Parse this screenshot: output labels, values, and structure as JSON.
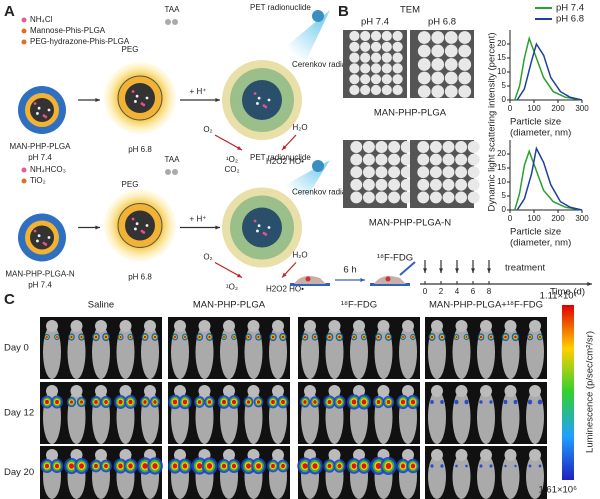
{
  "panel_a": {
    "label": "A",
    "top": {
      "legend": [
        "NH₄Cl",
        "Mannose-Phis-PLGA",
        "PEG-hydrazone-Phis-PLGA"
      ],
      "taa": "TAA",
      "peg": "PEG",
      "h_plus": "+ H⁺",
      "pet": "PET radionuclide",
      "cerenkov": "Cerenkov radiation",
      "o2": "O₂",
      "h2o": "H₂O",
      "singlet": "¹O₂",
      "ros": "H2O2 HO•",
      "name": "MAN-PHP-PLGA",
      "ph1": "pH 7.4",
      "ph2": "pH 6.8"
    },
    "bottom": {
      "legend": [
        "NH₄HCO₃",
        "TiO₂"
      ],
      "taa": "TAA",
      "peg": "PEG",
      "h_plus": "+ H⁺",
      "co2": "CO₂",
      "pet": "PET radionuclide",
      "cerenkov": "Cerenkov radiation",
      "o2": "O₂",
      "h2o": "H₂O",
      "singlet": "¹O₂",
      "ros": "H2O2 HO•",
      "name": "MAN-PHP-PLGA-N",
      "ph1": "pH 7.4",
      "ph2": "pH 6.8"
    }
  },
  "panel_b": {
    "label": "B",
    "tem": "TEM",
    "ph1": "pH 7.4",
    "ph2": "pH 6.8",
    "captions": [
      "MAN-PHP-PLGA",
      "MAN-PHP-PLGA-N"
    ],
    "ylabel": "Dynamic light scattering intensity (percent)",
    "charts": [
      {
        "type": "line",
        "xlabel": [
          "Particle size",
          "(diameter, nm)"
        ],
        "xlim": [
          0,
          300
        ],
        "ylim": [
          0,
          25
        ],
        "xticks": [
          0,
          100,
          200,
          300
        ],
        "yticks": [
          0,
          5,
          10,
          15,
          20
        ],
        "legend": "top-right",
        "series": [
          {
            "name": "pH 7.4",
            "color": "#2ca02c",
            "x": [
              20,
              40,
              60,
              80,
              110,
              140,
              180,
              230,
              300
            ],
            "values": [
              0,
              5,
              15,
              22,
              15,
              8,
              3,
              1,
              0
            ]
          },
          {
            "name": "pH 6.8",
            "color": "#1f3f9f",
            "x": [
              30,
              60,
              90,
              110,
              140,
              170,
              210,
              250,
              300
            ],
            "values": [
              0,
              4,
              14,
              20,
              16,
              8,
              3,
              1,
              0
            ]
          }
        ]
      },
      {
        "type": "line",
        "xlabel": [
          "Particle size",
          "(diameter, nm)"
        ],
        "xlim": [
          0,
          300
        ],
        "ylim": [
          0,
          25
        ],
        "xticks": [
          0,
          100,
          200,
          300
        ],
        "yticks": [
          0,
          5,
          10,
          15,
          20
        ],
        "series": [
          {
            "name": "pH 7.4",
            "color": "#2ca02c",
            "x": [
              20,
              40,
              60,
              80,
              110,
              140,
              180,
              230,
              300
            ],
            "values": [
              0,
              6,
              16,
              21,
              14,
              7,
              3,
              1,
              0
            ]
          },
          {
            "name": "pH 6.8",
            "color": "#1f3f9f",
            "x": [
              30,
              60,
              90,
              110,
              140,
              170,
              210,
              250,
              300
            ],
            "values": [
              0,
              4,
              13,
              22,
              17,
              9,
              3,
              1,
              0
            ]
          }
        ]
      }
    ]
  },
  "timeline": {
    "interval": "6 h",
    "tracer": "¹⁸F-FDG",
    "days": [
      "0",
      "2",
      "4",
      "6",
      "8"
    ],
    "treatment": "treatment",
    "axis": "Time (d)"
  },
  "panel_c": {
    "label": "C",
    "groups": [
      "Saline",
      "MAN-PHP-PLGA",
      "¹⁸F-FDG",
      "MAN-PHP-PLGA+¹⁸F-FDG"
    ],
    "rows": [
      "Day 0",
      "Day 12",
      "Day 20"
    ],
    "colorbar": {
      "max": "1.11×10⁷",
      "min": "1.61×10⁶",
      "label": "Luminescence (p/sec/cm²/sr)"
    }
  }
}
